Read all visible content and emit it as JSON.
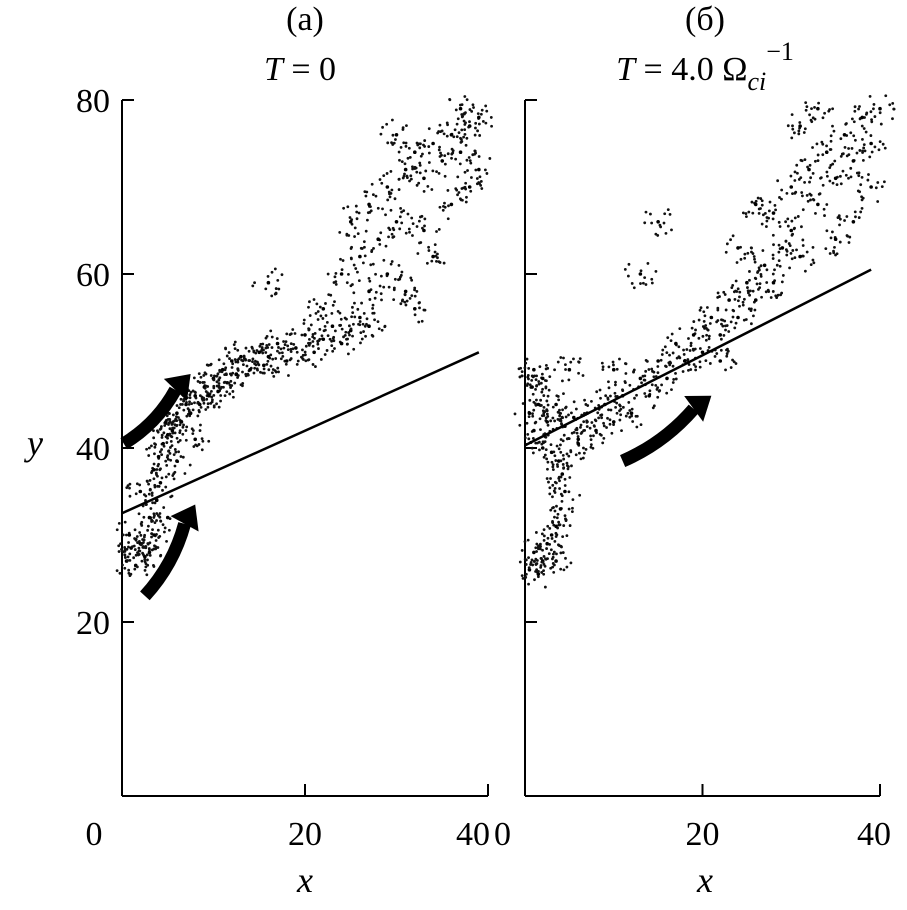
{
  "chart_data": [
    {
      "type": "scatter",
      "panel_label": "(a)",
      "title_var": "T",
      "title_eq": " = 0",
      "xlabel": "x",
      "ylabel": "y",
      "xlim": [
        0,
        40
      ],
      "ylim": [
        0,
        80
      ],
      "xticks": [
        "0",
        "20",
        "40"
      ],
      "yticks": [
        "20",
        "40",
        "60",
        "80"
      ],
      "line": {
        "x": [
          0,
          39
        ],
        "y": [
          32.5,
          51
        ]
      },
      "arrows": [
        {
          "from": [
            0.2,
            40.5
          ],
          "to": [
            7.5,
            48.5
          ]
        },
        {
          "from": [
            2.5,
            23
          ],
          "to": [
            8,
            33.5
          ]
        }
      ],
      "points": [
        [
          0.5,
          27
        ],
        [
          1,
          28.5
        ],
        [
          1.5,
          26.5
        ],
        [
          2,
          29
        ],
        [
          0.8,
          30
        ],
        [
          2.5,
          27.5
        ],
        [
          3,
          28
        ],
        [
          3.5,
          30
        ],
        [
          3,
          32
        ],
        [
          3.8,
          34
        ],
        [
          4.2,
          36
        ],
        [
          3.5,
          37.5
        ],
        [
          4,
          39
        ],
        [
          4.5,
          40.5
        ],
        [
          5,
          41.5
        ],
        [
          4.8,
          43
        ],
        [
          5.5,
          42
        ],
        [
          6,
          44
        ],
        [
          6.5,
          43
        ],
        [
          7,
          45
        ],
        [
          7.5,
          44
        ],
        [
          8,
          46
        ],
        [
          8.5,
          45
        ],
        [
          9,
          47
        ],
        [
          9.5,
          46
        ],
        [
          10,
          48
        ],
        [
          10.5,
          46.5
        ],
        [
          11,
          49
        ],
        [
          11.5,
          47.5
        ],
        [
          12,
          50
        ],
        [
          12.5,
          48.5
        ],
        [
          13,
          50.5
        ],
        [
          14,
          49
        ],
        [
          15,
          51
        ],
        [
          15.5,
          49.5
        ],
        [
          16,
          50.5
        ],
        [
          17,
          52
        ],
        [
          18,
          50
        ],
        [
          19,
          51.5
        ],
        [
          20,
          53
        ],
        [
          21,
          51
        ],
        [
          22,
          52.5
        ],
        [
          23,
          54
        ],
        [
          24,
          52
        ],
        [
          25,
          53.5
        ],
        [
          26,
          55
        ],
        [
          27,
          54
        ],
        [
          27,
          58
        ],
        [
          26,
          62
        ],
        [
          28,
          64
        ],
        [
          27,
          68
        ],
        [
          29,
          70
        ],
        [
          30,
          66
        ],
        [
          31,
          72
        ],
        [
          29,
          60
        ],
        [
          31,
          58
        ],
        [
          32,
          74
        ],
        [
          33,
          71
        ],
        [
          34,
          75
        ],
        [
          35,
          73
        ],
        [
          36,
          76
        ],
        [
          37,
          74
        ],
        [
          38,
          77
        ],
        [
          39,
          78
        ],
        [
          39,
          72
        ],
        [
          36,
          68
        ],
        [
          33,
          65
        ],
        [
          25,
          66
        ],
        [
          24,
          60
        ],
        [
          30,
          76
        ],
        [
          37,
          79
        ],
        [
          38,
          70
        ],
        [
          34,
          62
        ],
        [
          32,
          56
        ],
        [
          22,
          56
        ],
        [
          16,
          59
        ],
        [
          8,
          41
        ],
        [
          6,
          38.5
        ],
        [
          2,
          35
        ],
        [
          5,
          32
        ]
      ]
    },
    {
      "type": "scatter",
      "panel_label": "(б)",
      "title_var": "T",
      "title_eq": " = 4.0 Ω",
      "title_sub": "ci",
      "title_sup": "−1",
      "xlabel": "x",
      "ylabel": "",
      "xlim": [
        0,
        40
      ],
      "ylim": [
        0,
        80
      ],
      "xticks": [
        "0",
        "20",
        "40"
      ],
      "yticks": [],
      "line": {
        "x": [
          0,
          39
        ],
        "y": [
          40.3,
          60.5
        ]
      },
      "arrows": [
        {
          "from": [
            11,
            38.5
          ],
          "to": [
            21,
            46
          ]
        }
      ],
      "points": [
        [
          0.5,
          26
        ],
        [
          1,
          28
        ],
        [
          1.5,
          25.5
        ],
        [
          2,
          27
        ],
        [
          2.5,
          29
        ],
        [
          3,
          30
        ],
        [
          3.5,
          31
        ],
        [
          4,
          33
        ],
        [
          4.5,
          35
        ],
        [
          4.2,
          37
        ],
        [
          3.8,
          38.5
        ],
        [
          3,
          39.5
        ],
        [
          2,
          40
        ],
        [
          1,
          42
        ],
        [
          0.5,
          44
        ],
        [
          1.5,
          45
        ],
        [
          0.8,
          47
        ],
        [
          2,
          48
        ],
        [
          1,
          49
        ],
        [
          2.5,
          43
        ],
        [
          3.5,
          45
        ],
        [
          4.5,
          42.5
        ],
        [
          5.5,
          43.5
        ],
        [
          6,
          41
        ],
        [
          7,
          44
        ],
        [
          8,
          42
        ],
        [
          9,
          45
        ],
        [
          10,
          43
        ],
        [
          11,
          46
        ],
        [
          12,
          44
        ],
        [
          13,
          48
        ],
        [
          14,
          46
        ],
        [
          15,
          50
        ],
        [
          16,
          48
        ],
        [
          17,
          52
        ],
        [
          18,
          50
        ],
        [
          19,
          53
        ],
        [
          20,
          51
        ],
        [
          21,
          55
        ],
        [
          22,
          53
        ],
        [
          23,
          57
        ],
        [
          24,
          55
        ],
        [
          25,
          59
        ],
        [
          26,
          57
        ],
        [
          27,
          61
        ],
        [
          28,
          59
        ],
        [
          29,
          63
        ],
        [
          30,
          65
        ],
        [
          28,
          67
        ],
        [
          30,
          70
        ],
        [
          31,
          62
        ],
        [
          32,
          72
        ],
        [
          33,
          68
        ],
        [
          34,
          74
        ],
        [
          35,
          71
        ],
        [
          36,
          76
        ],
        [
          37,
          73
        ],
        [
          38,
          78
        ],
        [
          39,
          75
        ],
        [
          40,
          79
        ],
        [
          39,
          70
        ],
        [
          37,
          66
        ],
        [
          35,
          64
        ],
        [
          26,
          68
        ],
        [
          24,
          63
        ],
        [
          31,
          77
        ],
        [
          33,
          79
        ],
        [
          15,
          66
        ],
        [
          6,
          40.5
        ],
        [
          5,
          49
        ],
        [
          10,
          49
        ],
        [
          13,
          60
        ],
        [
          22,
          50
        ],
        [
          3.5,
          27
        ]
      ]
    }
  ]
}
